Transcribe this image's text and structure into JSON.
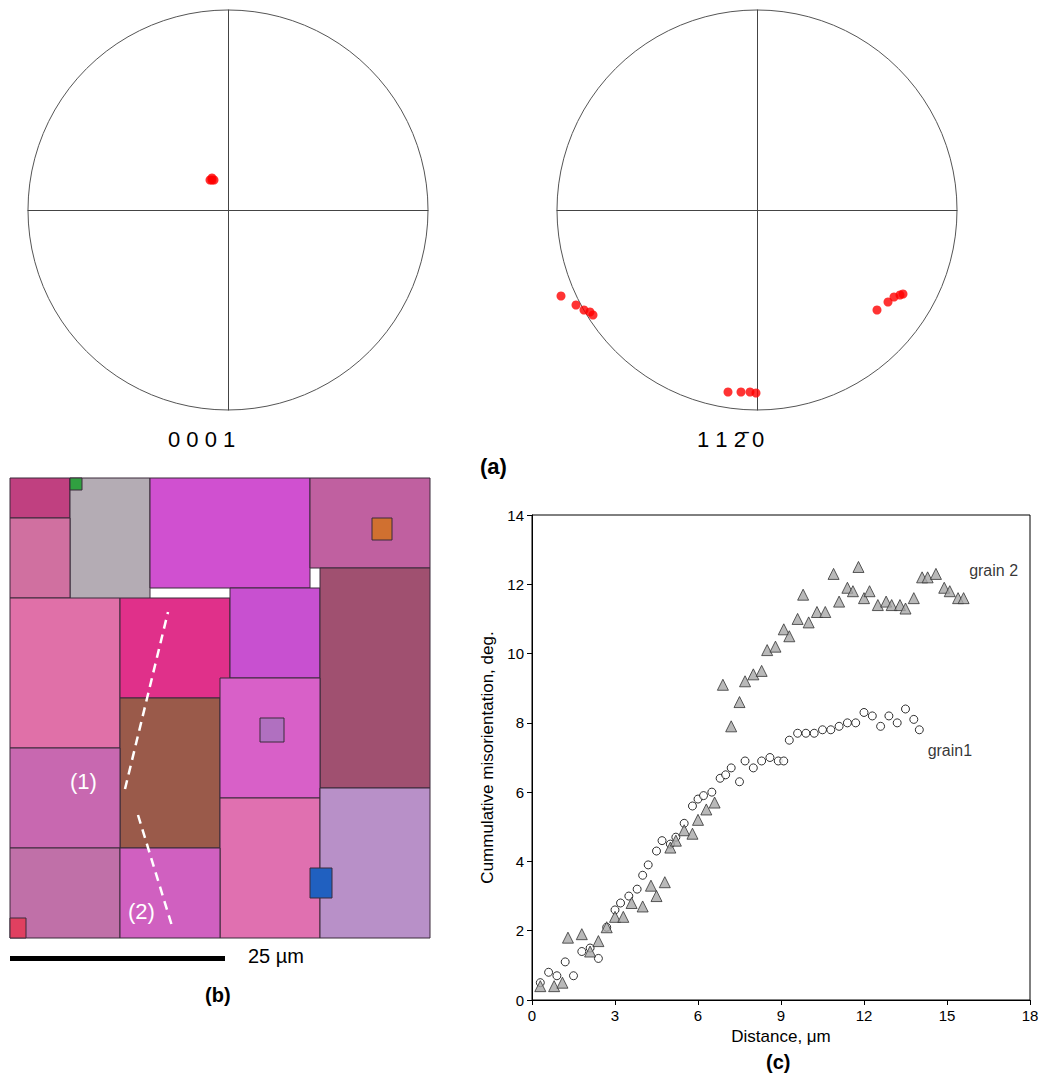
{
  "chart_data": [
    {
      "type": "scatter",
      "title": "0 0 0 1",
      "xlim": [
        -1,
        1
      ],
      "ylim": [
        -1,
        1
      ],
      "tick_labels": false,
      "grid": false,
      "color": "#ff0000",
      "marker": "circle",
      "x": [
        -0.09,
        -0.08,
        -0.07,
        -0.08
      ],
      "values": [
        0.15,
        0.15,
        0.15,
        0.16
      ]
    },
    {
      "type": "scatter",
      "title": "1 1 2̄ 0",
      "xlim": [
        -1,
        1
      ],
      "ylim": [
        -1,
        1
      ],
      "tick_labels": false,
      "grid": false,
      "color": "#ff0000",
      "marker": "circle",
      "x": [
        -0.98,
        -0.905,
        -0.865,
        -0.835,
        -0.82,
        -0.145,
        -0.08,
        -0.035,
        -0.005,
        0.6,
        0.655,
        0.685,
        0.715,
        0.73
      ],
      "values": [
        -0.43,
        -0.475,
        -0.5,
        -0.51,
        -0.525,
        -0.91,
        -0.91,
        -0.91,
        -0.915,
        -0.5,
        -0.46,
        -0.435,
        -0.425,
        -0.42
      ]
    },
    {
      "type": "scatter",
      "xlabel": "Distance, μm",
      "ylabel": "Cummulative misorientation, deg.",
      "xlim": [
        0,
        18
      ],
      "xticks": [
        0,
        3,
        6,
        9,
        12,
        15,
        18
      ],
      "ylim": [
        0,
        14
      ],
      "yticks": [
        0,
        2,
        4,
        6,
        8,
        10,
        12,
        14
      ],
      "grid": false,
      "series": [
        {
          "marker": "circle",
          "color": "#000000",
          "x": [
            0.3,
            0.6,
            0.9,
            1.2,
            1.5,
            1.8,
            2.1,
            2.4,
            2.7,
            3.0,
            3.2,
            3.5,
            3.8,
            4.0,
            4.2,
            4.5,
            4.7,
            5.0,
            5.2,
            5.5,
            5.8,
            6.0,
            6.2,
            6.5,
            6.8,
            7.0,
            7.2,
            7.5,
            7.7,
            8.0,
            8.3,
            8.6,
            8.9,
            9.1,
            9.3,
            9.6,
            9.9,
            10.2,
            10.5,
            10.8,
            11.1,
            11.4,
            11.7,
            12.0,
            12.3,
            12.6,
            12.9,
            13.2,
            13.5,
            13.8,
            14.0
          ],
          "values": [
            0.5,
            0.8,
            0.7,
            1.1,
            0.7,
            1.4,
            1.5,
            1.2,
            2.1,
            2.6,
            2.8,
            3.0,
            3.2,
            3.6,
            3.9,
            4.3,
            4.6,
            4.5,
            4.7,
            5.1,
            5.6,
            5.8,
            5.9,
            6.0,
            6.4,
            6.5,
            6.7,
            6.3,
            6.9,
            6.7,
            6.9,
            7.0,
            6.9,
            6.9,
            7.5,
            7.7,
            7.7,
            7.7,
            7.8,
            7.8,
            7.9,
            8.0,
            8.0,
            8.3,
            8.2,
            7.9,
            8.2,
            8.0,
            8.4,
            8.1,
            7.8
          ]
        },
        {
          "marker": "triangle",
          "color": "#a8a8a8",
          "x": [
            0.3,
            0.8,
            1.1,
            1.3,
            1.8,
            2.1,
            2.4,
            2.7,
            3.0,
            3.3,
            3.6,
            4.0,
            4.3,
            4.5,
            4.8,
            5.0,
            5.2,
            5.5,
            5.8,
            6.0,
            6.3,
            6.6,
            6.9,
            7.2,
            7.5,
            7.7,
            8.0,
            8.3,
            8.5,
            8.8,
            9.1,
            9.3,
            9.6,
            9.8,
            10.0,
            10.3,
            10.6,
            10.9,
            11.1,
            11.4,
            11.6,
            11.8,
            12.0,
            12.2,
            12.5,
            12.8,
            13.0,
            13.3,
            13.5,
            13.8,
            14.1,
            14.3,
            14.6,
            14.9,
            15.1,
            15.4,
            15.6
          ],
          "values": [
            0.4,
            0.4,
            0.5,
            1.8,
            1.9,
            1.4,
            1.7,
            2.1,
            2.4,
            2.4,
            2.8,
            2.7,
            3.3,
            3.0,
            3.4,
            4.4,
            4.6,
            4.9,
            4.8,
            5.2,
            5.5,
            5.7,
            9.1,
            7.9,
            8.6,
            9.2,
            9.4,
            9.5,
            10.1,
            10.2,
            10.7,
            10.5,
            11.0,
            11.7,
            10.9,
            11.2,
            11.2,
            12.3,
            11.5,
            11.9,
            11.8,
            12.5,
            11.6,
            11.8,
            11.4,
            11.5,
            11.4,
            11.4,
            11.3,
            11.6,
            12.2,
            12.2,
            12.3,
            11.9,
            11.8,
            11.6,
            11.6
          ]
        }
      ],
      "annotations": [
        {
          "text": "grain 2",
          "x": 15.8,
          "y": 12.4
        },
        {
          "text": "grain1",
          "x": 14.3,
          "y": 7.2
        }
      ]
    }
  ],
  "map": {
    "line_labels": [
      "(1)",
      "(2)"
    ],
    "scale_bar": "25 µm"
  },
  "panel_labels": [
    "(a)",
    "(b)",
    "(c)"
  ]
}
